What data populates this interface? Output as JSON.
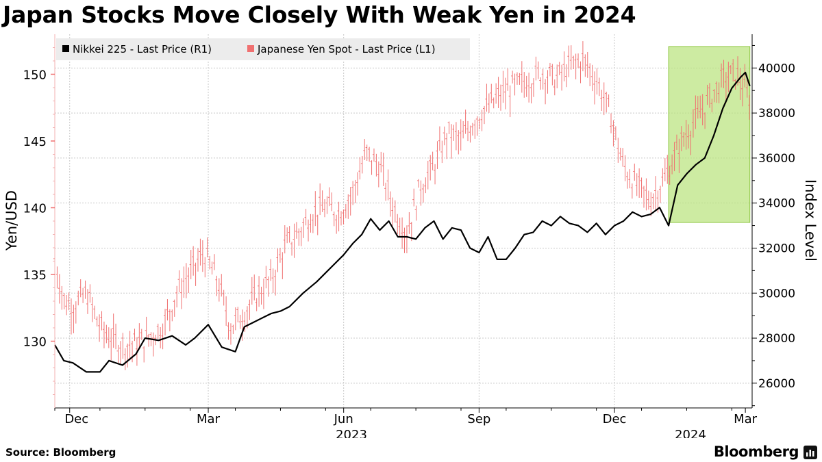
{
  "title": "Japan Stocks Move Closely With Weak Yen in 2024",
  "source": "Source: Bloomberg",
  "brand": "Bloomberg",
  "chart_data": {
    "type": "line",
    "title": "Japan Stocks Move Closely With Weak Yen in 2024",
    "x_ticks": [
      "Dec",
      "Mar",
      "Jun",
      "Sep",
      "Dec",
      "Mar"
    ],
    "year_labels": [
      "2023",
      "2024"
    ],
    "left_axis": {
      "label": "Yen/USD",
      "ticks": [
        130,
        135,
        140,
        145,
        150
      ],
      "range": [
        125,
        153
      ]
    },
    "right_axis": {
      "label": "Index Level",
      "ticks": [
        26000,
        28000,
        30000,
        32000,
        34000,
        36000,
        38000,
        40000
      ],
      "range": [
        24900,
        41500
      ]
    },
    "legend": [
      {
        "name": "Nikkei 225 - Last Price (R1)",
        "color": "#000000"
      },
      {
        "name": "Japanese Yen Spot - Last Price (L1)",
        "color": "#f07070"
      }
    ],
    "highlight": {
      "from_month": 13.6,
      "to_month": 15.4,
      "color": "#b8e27a"
    },
    "series": [
      {
        "name": "Nikkei 225 - Last Price (R1)",
        "axis": "right",
        "color": "#000000",
        "x_months": [
          0,
          0.2,
          0.4,
          0.7,
          1.0,
          1.2,
          1.5,
          1.8,
          2.0,
          2.3,
          2.6,
          2.9,
          3.1,
          3.4,
          3.7,
          4.0,
          4.2,
          4.4,
          4.6,
          4.8,
          5.0,
          5.2,
          5.5,
          5.8,
          6.0,
          6.2,
          6.4,
          6.6,
          6.8,
          7.0,
          7.2,
          7.4,
          7.6,
          7.8,
          8.0,
          8.2,
          8.4,
          8.6,
          8.8,
          9.0,
          9.2,
          9.4,
          9.6,
          9.8,
          10.0,
          10.2,
          10.4,
          10.6,
          10.8,
          11.0,
          11.2,
          11.4,
          11.6,
          11.8,
          12.0,
          12.2,
          12.4,
          12.6,
          12.8,
          13.0,
          13.2,
          13.4,
          13.6,
          13.8,
          14.0,
          14.2,
          14.4,
          14.6,
          14.8,
          15.0,
          15.2,
          15.3,
          15.4
        ],
        "values": [
          27700,
          27000,
          26900,
          26500,
          26500,
          27000,
          26800,
          27300,
          28000,
          27900,
          28100,
          27700,
          28000,
          28600,
          27600,
          27400,
          28500,
          28700,
          28900,
          29100,
          29200,
          29400,
          30000,
          30500,
          30900,
          31300,
          31700,
          32200,
          32600,
          33300,
          32800,
          33200,
          32500,
          32500,
          32400,
          32900,
          33200,
          32400,
          32900,
          32800,
          32000,
          31800,
          32500,
          31500,
          31500,
          32000,
          32600,
          32700,
          33200,
          33000,
          33400,
          33100,
          33000,
          32700,
          33100,
          32600,
          33000,
          33200,
          33600,
          33400,
          33500,
          33800,
          33000,
          34800,
          35300,
          35700,
          36000,
          37000,
          38200,
          39100,
          39600,
          39800,
          39200
        ]
      },
      {
        "name": "Japanese Yen Spot - Last Price (L1)",
        "axis": "left",
        "color": "#f07070",
        "x_months": [
          0,
          0.2,
          0.4,
          0.7,
          1.0,
          1.3,
          1.6,
          2.0,
          2.4,
          2.7,
          3.0,
          3.3,
          3.6,
          3.9,
          4.2,
          4.5,
          4.8,
          5.1,
          5.4,
          5.7,
          6.0,
          6.3,
          6.6,
          6.9,
          7.2,
          7.5,
          7.8,
          8.1,
          8.4,
          8.7,
          9.0,
          9.3,
          9.6,
          9.9,
          10.2,
          10.5,
          10.8,
          11.1,
          11.4,
          11.7,
          12.0,
          12.3,
          12.6,
          12.9,
          13.2,
          13.5,
          13.7,
          13.9,
          14.2,
          14.5,
          14.8,
          15.1,
          15.4
        ],
        "values": [
          136,
          133,
          132.5,
          133.5,
          131,
          130,
          129.5,
          130,
          131,
          133.5,
          135,
          136.5,
          134.5,
          131,
          132,
          133.5,
          134.5,
          137,
          138,
          139.5,
          140,
          139.5,
          141,
          144,
          143,
          140,
          138,
          141.5,
          143,
          145.5,
          145,
          146.5,
          147.5,
          148.5,
          149,
          149.5,
          150,
          149.5,
          150.5,
          151,
          149.5,
          147,
          143,
          141.5,
          140.5,
          142,
          143.5,
          145,
          146.5,
          148,
          149.5,
          150,
          148
        ]
      }
    ]
  }
}
